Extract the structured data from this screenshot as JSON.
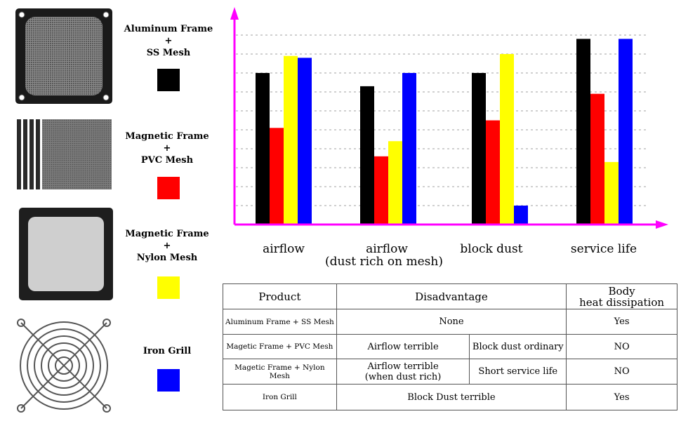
{
  "legend": [
    {
      "line1": "Aluminum Frame",
      "plus": "+",
      "line2": "SS Mesh",
      "color": "#000000"
    },
    {
      "line1": "Magnetic Frame",
      "plus": "+",
      "line2": "PVC Mesh",
      "color": "#ff0000"
    },
    {
      "line1": "Magnetic Frame",
      "plus": "+",
      "line2": "Nylon Mesh",
      "color": "#ffff00"
    },
    {
      "line1": "Iron Grill",
      "color": "#0000ff"
    }
  ],
  "chart_data": {
    "type": "bar",
    "categories": [
      {
        "line1": "airflow",
        "line2": ""
      },
      {
        "line1": "airflow",
        "line2": "(dust rich on mesh)"
      },
      {
        "line1": "block dust",
        "line2": ""
      },
      {
        "line1": "service life",
        "line2": ""
      }
    ],
    "series": [
      {
        "color": "#000000",
        "values": [
          8.0,
          7.3,
          8.0,
          9.8
        ]
      },
      {
        "color": "#ff0000",
        "values": [
          5.1,
          3.6,
          5.5,
          6.9
        ]
      },
      {
        "color": "#ffff00",
        "values": [
          8.9,
          4.4,
          9.0,
          3.3
        ]
      },
      {
        "color": "#0000ff",
        "values": [
          8.8,
          8.0,
          1.0,
          9.8
        ]
      }
    ],
    "ylim": [
      0,
      10
    ],
    "grid": true,
    "axis_color": "#ff00ff"
  },
  "table": {
    "headers": {
      "product": "Product",
      "disadvantage": "Disadvantage",
      "heat_line1": "Body",
      "heat_line2": "heat dissipation"
    },
    "rows": {
      "r1": {
        "product": "Aluminum Frame + SS Mesh",
        "disadv": "None",
        "heat": "Yes"
      },
      "r2": {
        "product": "Magetic Frame + PVC Mesh",
        "d1": "Airflow terrible",
        "d2": "Block dust ordinary",
        "heat": "NO"
      },
      "r3": {
        "product": "Magetic Frame + Nylon Mesh",
        "d1a": "Airflow terrible",
        "d1b": "(when dust rich)",
        "d2": "Short service life",
        "heat": "NO"
      },
      "r4": {
        "product": "Iron Grill",
        "disadv": "Block Dust terrible",
        "heat": "Yes"
      }
    }
  }
}
